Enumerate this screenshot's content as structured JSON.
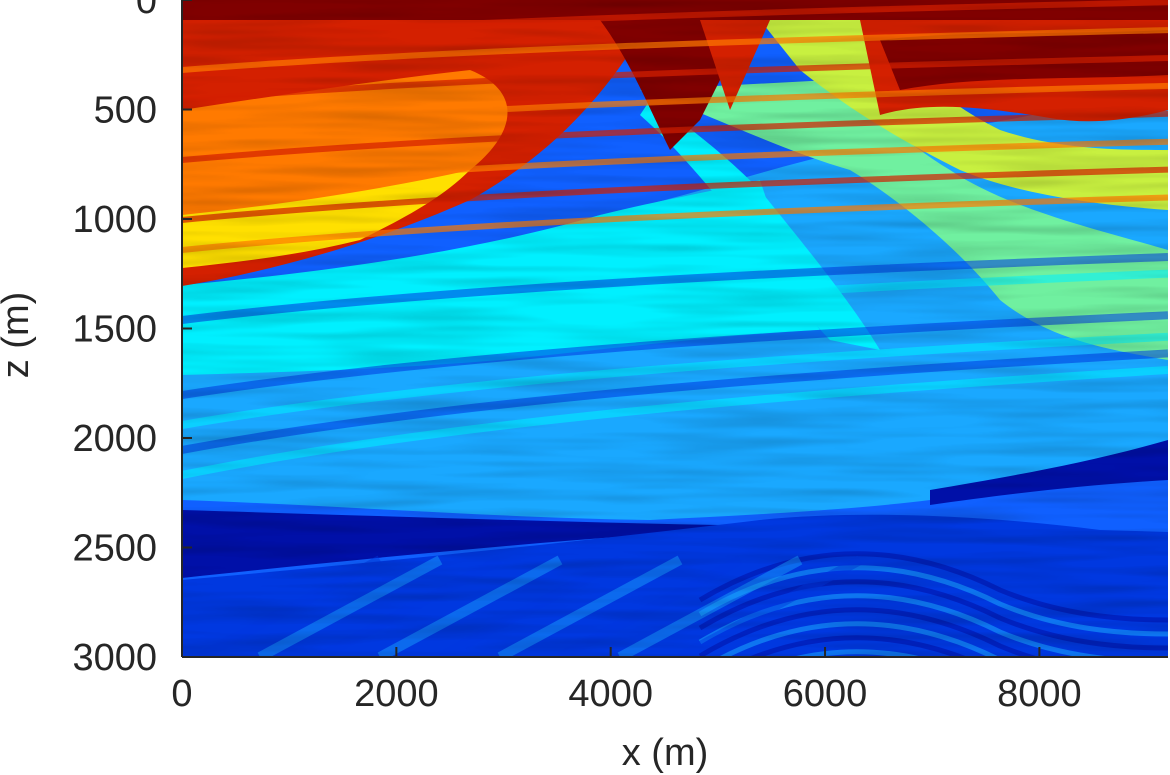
{
  "chart_data": {
    "type": "heatmap",
    "title": "",
    "xlabel": "x (m)",
    "ylabel": "z (m)",
    "xlim": [
      0,
      9200
    ],
    "ylim": [
      0,
      3000
    ],
    "y_reversed": true,
    "x_ticks": [
      0,
      2000,
      4000,
      6000,
      8000
    ],
    "x_tick_labels": [
      "0",
      "2000",
      "4000",
      "6000",
      "8000"
    ],
    "y_ticks": [
      0,
      500,
      1000,
      1500,
      2000,
      2500,
      3000
    ],
    "y_tick_labels": [
      "0",
      "500",
      "1000",
      "1500",
      "2000",
      "2500",
      "3000"
    ],
    "colormap": "jet",
    "colors": {
      "dark_red": "#800000",
      "red": "#d42000",
      "orange": "#ff7a00",
      "yellow": "#ffe000",
      "yellow_green": "#c8f040",
      "aqua_green": "#70f0a0",
      "cyan": "#00f0ff",
      "light_blue": "#1aa8ff",
      "blue": "#1060ff",
      "medium_blue": "#0038e0",
      "navy": "#0010a8"
    }
  }
}
